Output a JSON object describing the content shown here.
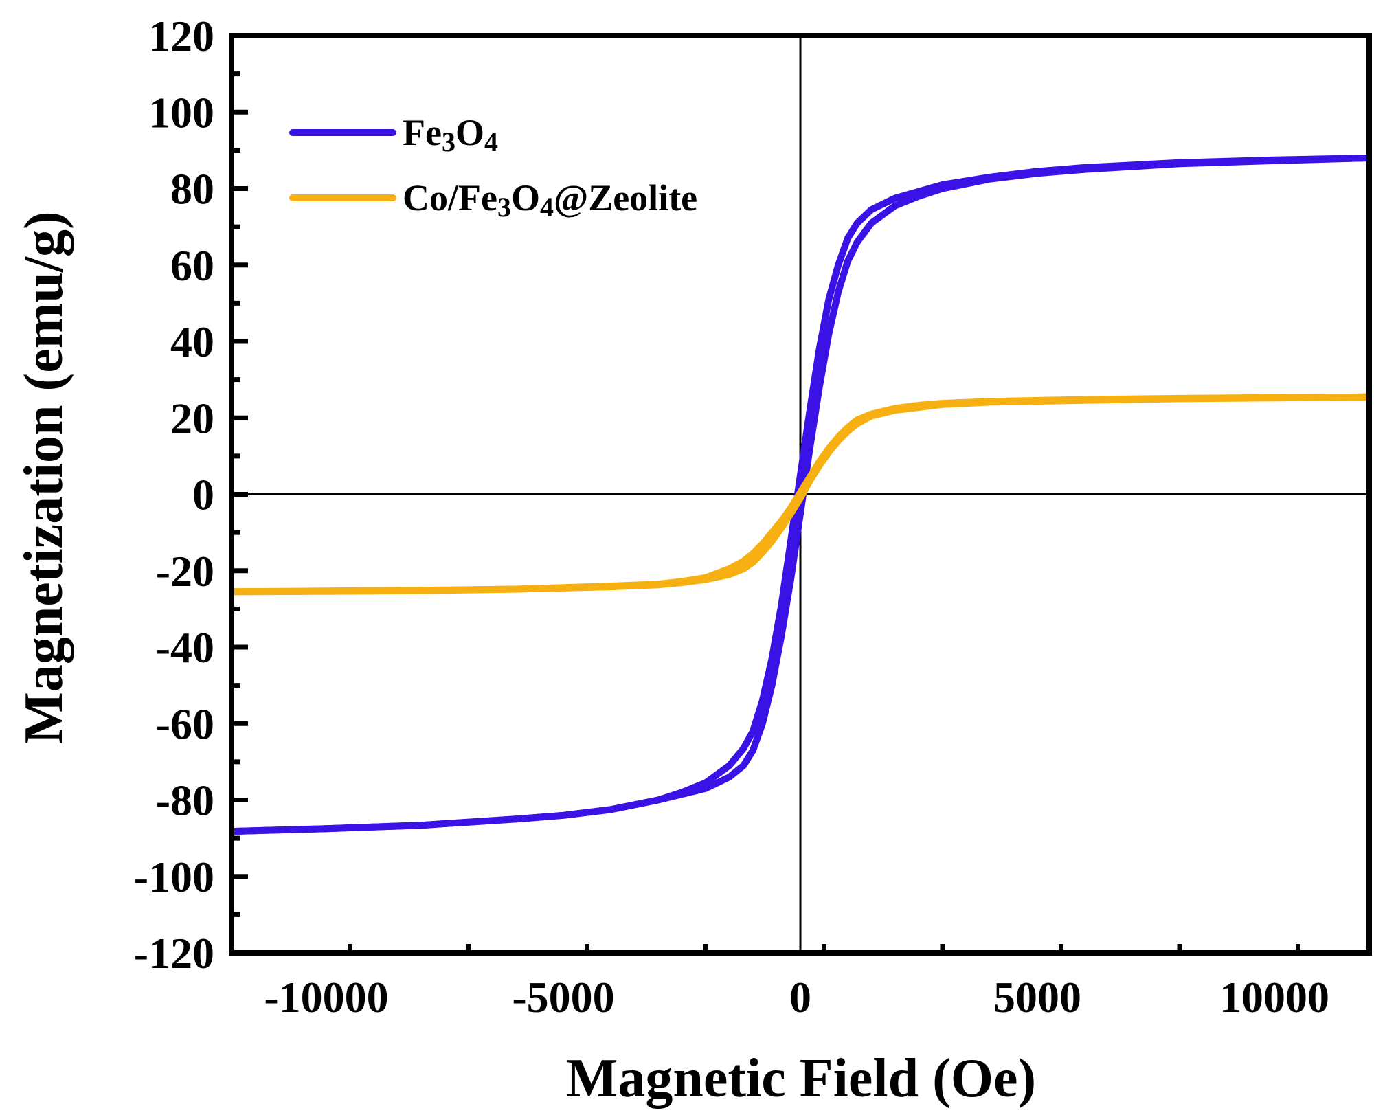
{
  "chart_data": {
    "type": "line",
    "xlabel": "Magnetic Field (Oe)",
    "ylabel": "Magnetization (emu/g)",
    "xlim": [
      -12000,
      12000
    ],
    "ylim": [
      -120,
      120
    ],
    "x_ticks": [
      -10000,
      -5000,
      0,
      5000,
      10000
    ],
    "x_tick_labels": [
      "-10000",
      "-5000",
      "0",
      "5000",
      "10000"
    ],
    "y_ticks": [
      -120,
      -100,
      -80,
      -60,
      -40,
      -20,
      0,
      20,
      40,
      60,
      80,
      100,
      120
    ],
    "y_tick_labels": [
      "-120",
      "-100",
      "-80",
      "-60",
      "-40",
      "-20",
      "0",
      "20",
      "40",
      "60",
      "80",
      "100",
      "120"
    ],
    "zero_lines": true,
    "grid": false,
    "legend_position": "top-left",
    "series": [
      {
        "name_parts": [
          {
            "text": "Fe",
            "sub": false
          },
          {
            "text": "3",
            "sub": true
          },
          {
            "text": "O",
            "sub": false
          },
          {
            "text": "4",
            "sub": true
          }
        ],
        "color": "#3a12e6",
        "upper_branch": [
          [
            -12000,
            -88.2
          ],
          [
            -10000,
            -87.5
          ],
          [
            -8000,
            -86.6
          ],
          [
            -6000,
            -85.0
          ],
          [
            -5000,
            -84.0
          ],
          [
            -4000,
            -82.5
          ],
          [
            -3000,
            -80.0
          ],
          [
            -2500,
            -78.0
          ],
          [
            -2000,
            -75.5
          ],
          [
            -1500,
            -71.0
          ],
          [
            -1200,
            -66.5
          ],
          [
            -1000,
            -62.0
          ],
          [
            -800,
            -54.0
          ],
          [
            -600,
            -43.0
          ],
          [
            -400,
            -29.0
          ],
          [
            -200,
            -12.0
          ],
          [
            0,
            5.0
          ],
          [
            200,
            22.0
          ],
          [
            400,
            38.0
          ],
          [
            600,
            51.0
          ],
          [
            800,
            60.0
          ],
          [
            1000,
            67.0
          ],
          [
            1200,
            71.0
          ],
          [
            1500,
            74.5
          ],
          [
            2000,
            77.5
          ],
          [
            3000,
            81.0
          ],
          [
            4000,
            83.0
          ],
          [
            5000,
            84.5
          ],
          [
            6000,
            85.5
          ],
          [
            8000,
            86.8
          ],
          [
            10000,
            87.5
          ],
          [
            12000,
            88.0
          ]
        ],
        "lower_branch": [
          [
            -12000,
            -88.2
          ],
          [
            -10000,
            -87.5
          ],
          [
            -8000,
            -86.6
          ],
          [
            -6000,
            -85.0
          ],
          [
            -5000,
            -84.0
          ],
          [
            -4000,
            -82.5
          ],
          [
            -3000,
            -80.0
          ],
          [
            -2000,
            -77.0
          ],
          [
            -1500,
            -74.0
          ],
          [
            -1200,
            -71.0
          ],
          [
            -1000,
            -67.0
          ],
          [
            -800,
            -60.0
          ],
          [
            -600,
            -50.0
          ],
          [
            -400,
            -37.0
          ],
          [
            -200,
            -22.0
          ],
          [
            0,
            -5.0
          ],
          [
            200,
            12.0
          ],
          [
            400,
            28.0
          ],
          [
            600,
            42.0
          ],
          [
            800,
            53.0
          ],
          [
            1000,
            61.0
          ],
          [
            1200,
            66.0
          ],
          [
            1500,
            71.0
          ],
          [
            2000,
            75.5
          ],
          [
            2500,
            78.0
          ],
          [
            3000,
            80.0
          ],
          [
            4000,
            82.5
          ],
          [
            5000,
            84.0
          ],
          [
            6000,
            85.0
          ],
          [
            8000,
            86.5
          ],
          [
            10000,
            87.3
          ],
          [
            12000,
            88.0
          ]
        ]
      },
      {
        "name_parts": [
          {
            "text": "Co/Fe",
            "sub": false
          },
          {
            "text": "3",
            "sub": true
          },
          {
            "text": "O",
            "sub": false
          },
          {
            "text": "4",
            "sub": true
          },
          {
            "text": "@Zeolite",
            "sub": false
          }
        ],
        "color": "#f6b011",
        "upper_branch": [
          [
            -12000,
            -25.5
          ],
          [
            -10000,
            -25.4
          ],
          [
            -8000,
            -25.2
          ],
          [
            -6000,
            -24.8
          ],
          [
            -4000,
            -24.0
          ],
          [
            -3000,
            -23.5
          ],
          [
            -2500,
            -22.8
          ],
          [
            -2000,
            -21.8
          ],
          [
            -1500,
            -19.5
          ],
          [
            -1200,
            -17.5
          ],
          [
            -1000,
            -15.5
          ],
          [
            -800,
            -13.0
          ],
          [
            -600,
            -10.0
          ],
          [
            -400,
            -7.0
          ],
          [
            -200,
            -3.5
          ],
          [
            0,
            0.5
          ],
          [
            200,
            4.5
          ],
          [
            400,
            8.5
          ],
          [
            600,
            12.0
          ],
          [
            800,
            15.0
          ],
          [
            1000,
            17.5
          ],
          [
            1200,
            19.5
          ],
          [
            1500,
            21.0
          ],
          [
            2000,
            22.5
          ],
          [
            2500,
            23.3
          ],
          [
            3000,
            23.8
          ],
          [
            4000,
            24.3
          ],
          [
            6000,
            24.8
          ],
          [
            8000,
            25.1
          ],
          [
            10000,
            25.3
          ],
          [
            12000,
            25.5
          ]
        ],
        "lower_branch": [
          [
            -12000,
            -25.5
          ],
          [
            -10000,
            -25.3
          ],
          [
            -8000,
            -25.1
          ],
          [
            -6000,
            -24.8
          ],
          [
            -4000,
            -24.2
          ],
          [
            -3000,
            -23.7
          ],
          [
            -2500,
            -23.1
          ],
          [
            -2000,
            -22.3
          ],
          [
            -1500,
            -21.0
          ],
          [
            -1200,
            -19.5
          ],
          [
            -1000,
            -17.8
          ],
          [
            -800,
            -15.2
          ],
          [
            -600,
            -12.3
          ],
          [
            -400,
            -8.8
          ],
          [
            -200,
            -5.0
          ],
          [
            0,
            -1.0
          ],
          [
            200,
            3.5
          ],
          [
            400,
            7.5
          ],
          [
            600,
            11.0
          ],
          [
            800,
            14.0
          ],
          [
            1000,
            16.5
          ],
          [
            1200,
            18.5
          ],
          [
            1500,
            20.5
          ],
          [
            2000,
            22.0
          ],
          [
            3000,
            23.5
          ],
          [
            4000,
            24.1
          ],
          [
            6000,
            24.6
          ],
          [
            8000,
            25.0
          ],
          [
            10000,
            25.2
          ],
          [
            12000,
            25.5
          ]
        ]
      }
    ]
  }
}
